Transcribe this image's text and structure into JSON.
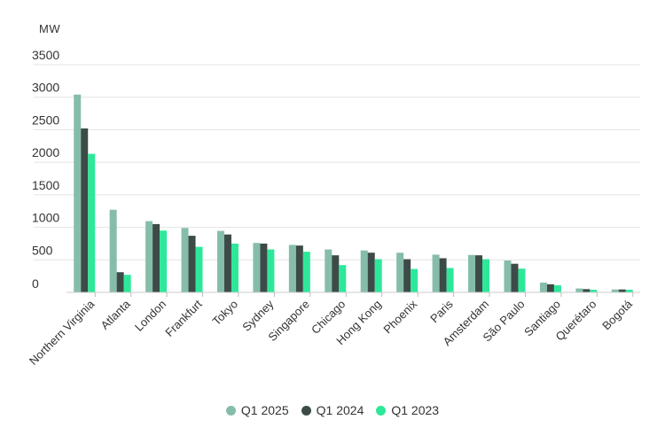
{
  "chart_data": {
    "type": "bar",
    "unit_label": "MW",
    "categories": [
      "Northern Virginia",
      "Atlanta",
      "London",
      "Frankfurt",
      "Tokyo",
      "Sydney",
      "Singapore",
      "Chicago",
      "Hong Kong",
      "Phoenix",
      "Paris",
      "Amsterdam",
      "São Paulo",
      "Santiago",
      "Querétaro",
      "Bogotá"
    ],
    "series": [
      {
        "name": "Q1 2025",
        "color": "#86bdaa",
        "values": [
          3040,
          1270,
          1095,
          990,
          945,
          760,
          730,
          660,
          645,
          610,
          580,
          575,
          490,
          150,
          60,
          45
        ]
      },
      {
        "name": "Q1 2024",
        "color": "#3d4b48",
        "values": [
          2520,
          310,
          1050,
          870,
          890,
          750,
          720,
          570,
          610,
          510,
          525,
          570,
          440,
          125,
          50,
          45
        ]
      },
      {
        "name": "Q1 2023",
        "color": "#2ee89a",
        "values": [
          2130,
          270,
          950,
          700,
          750,
          660,
          625,
          420,
          510,
          360,
          375,
          510,
          365,
          110,
          40,
          40
        ]
      }
    ],
    "yticks": [
      0,
      500,
      1000,
      1500,
      2000,
      2500,
      3000,
      3500
    ],
    "ylim": [
      0,
      3500
    ],
    "grid": true,
    "legend_position": "bottom"
  }
}
